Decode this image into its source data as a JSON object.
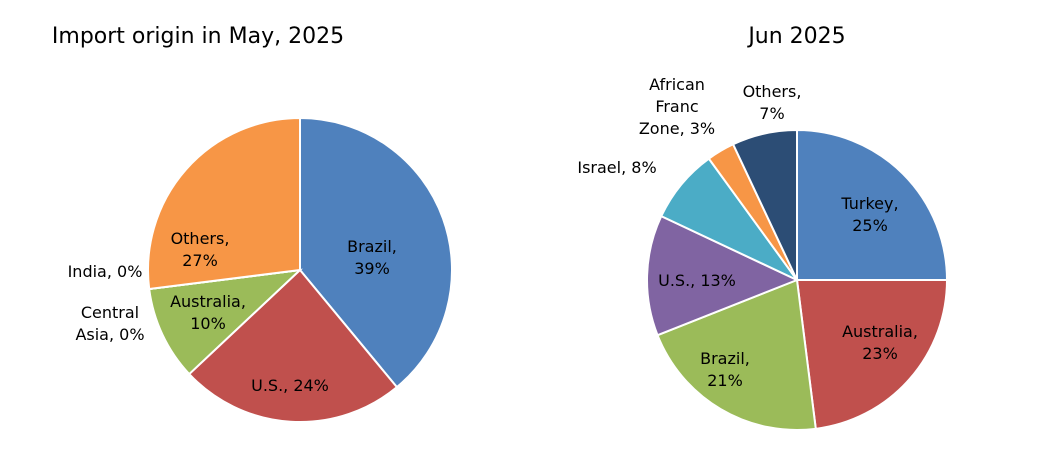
{
  "chart_data": [
    {
      "type": "pie",
      "title": "Import origin in May, 2025",
      "categories": [
        "Brazil",
        "U.S.",
        "Australia",
        "Central Asia",
        "India",
        "Others"
      ],
      "values": [
        39,
        24,
        10,
        0,
        0,
        27
      ],
      "value_labels": [
        "Brazil, 39%",
        "U.S., 24%",
        "Australia, 10%",
        "Central Asia, 0%",
        "India, 0%",
        "Others, 27%"
      ],
      "colors": [
        "#4f81bd",
        "#c0504d",
        "#9bbb59",
        "#8064a2",
        "#4bacc6",
        "#f79646"
      ]
    },
    {
      "type": "pie",
      "title": "Jun 2025",
      "categories": [
        "Turkey",
        "Australia",
        "Brazil",
        "U.S.",
        "Israel",
        "African Franc Zone",
        "Others"
      ],
      "values": [
        25,
        23,
        21,
        13,
        8,
        3,
        7
      ],
      "value_labels": [
        "Turkey, 25%",
        "Australia, 23%",
        "Brazil, 21%",
        "U.S., 13%",
        "Israel, 8%",
        "African Franc Zone, 3%",
        "Others, 7%"
      ],
      "colors": [
        "#4f81bd",
        "#c0504d",
        "#9bbb59",
        "#8064a2",
        "#4bacc6",
        "#f79646",
        "#2c4d75"
      ]
    }
  ]
}
